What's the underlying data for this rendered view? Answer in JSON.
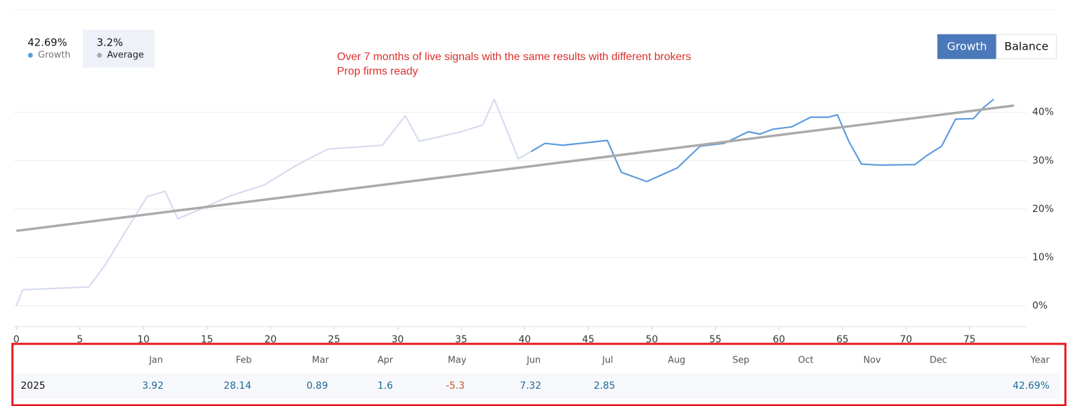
{
  "chart_data": {
    "type": "line",
    "annotation": [
      "Over 7 months of live signals with the same results with different brokers",
      "Prop firms ready"
    ],
    "x": [
      0,
      0.5,
      3,
      5.7,
      7,
      8.5,
      10.3,
      11.7,
      12.7,
      14.5,
      16.8,
      19.5,
      22,
      24.5,
      28.8,
      30.6,
      31.7,
      35,
      36.7,
      37.6,
      39.5,
      40.5,
      41.6,
      43,
      46.5,
      47.6,
      49.6,
      52,
      53.8,
      55.7,
      57.6,
      58.5,
      59.5,
      61,
      62.5,
      63.9,
      64.6,
      65.5,
      66.5,
      68,
      70.7,
      71.6,
      72.8,
      73.9,
      75.3,
      76.1,
      76.9
    ],
    "series": [
      {
        "color": "#d6dbf0",
        "values": [
          0,
          3.3,
          3.6,
          3.9,
          8.5,
          15,
          22.6,
          23.7,
          18,
          20,
          22.7,
          25,
          29,
          32.4,
          33.2,
          39.3,
          34,
          36,
          37.4,
          42.7,
          30.4,
          31.9,
          null,
          null,
          null,
          null,
          null,
          null,
          null,
          null,
          null,
          null,
          null,
          null,
          null,
          null,
          null,
          null,
          null,
          null,
          null,
          null,
          null,
          null,
          null,
          null,
          null
        ]
      },
      {
        "name": "Growth",
        "summary": "42.69%",
        "color": "#5d9bdc",
        "values": [
          null,
          null,
          null,
          null,
          null,
          null,
          null,
          null,
          null,
          null,
          null,
          null,
          null,
          null,
          null,
          null,
          null,
          null,
          null,
          null,
          null,
          31.9,
          33.6,
          33.2,
          34.2,
          27.6,
          25.7,
          28.5,
          33,
          33.6,
          36,
          35.5,
          36.5,
          37,
          39,
          39,
          39.5,
          34,
          29.3,
          29.1,
          29.2,
          31,
          33,
          38.6,
          38.7,
          41,
          42.7
        ]
      },
      {
        "name": "Average",
        "summary": "3.2%",
        "color": "#aaaaaa",
        "x": [
          0,
          78.5
        ],
        "values": [
          15.5,
          41.4
        ]
      }
    ],
    "xlim": [
      -0.2,
      79.5
    ],
    "ylim": [
      -4.3,
      47.1
    ],
    "xticks": [
      0,
      5,
      10,
      15,
      20,
      25,
      30,
      35,
      40,
      45,
      50,
      55,
      60,
      65,
      70,
      75
    ],
    "yticks": [
      {
        "value": 0,
        "label": "0%"
      },
      {
        "value": 10,
        "label": "10%"
      },
      {
        "value": 20,
        "label": "20%"
      },
      {
        "value": 30,
        "label": "30%"
      },
      {
        "value": 40,
        "label": "40%"
      }
    ],
    "grid": true
  },
  "buttons": [
    "Growth",
    "Balance"
  ],
  "active_button": 0,
  "table": {
    "months": [
      "Jan",
      "Feb",
      "Mar",
      "Apr",
      "May",
      "Jun",
      "Jul",
      "Aug",
      "Sep",
      "Oct",
      "Nov",
      "Dec"
    ],
    "total_header": "Year",
    "positive_color": "#1e6a94",
    "negative_color": "#c2582f",
    "rows": [
      {
        "year": "2025",
        "values": [
          3.92,
          28.14,
          0.89,
          1.6,
          -5.3,
          7.32,
          2.85,
          null,
          null,
          null,
          null,
          null
        ],
        "total": "42.69%"
      }
    ]
  }
}
